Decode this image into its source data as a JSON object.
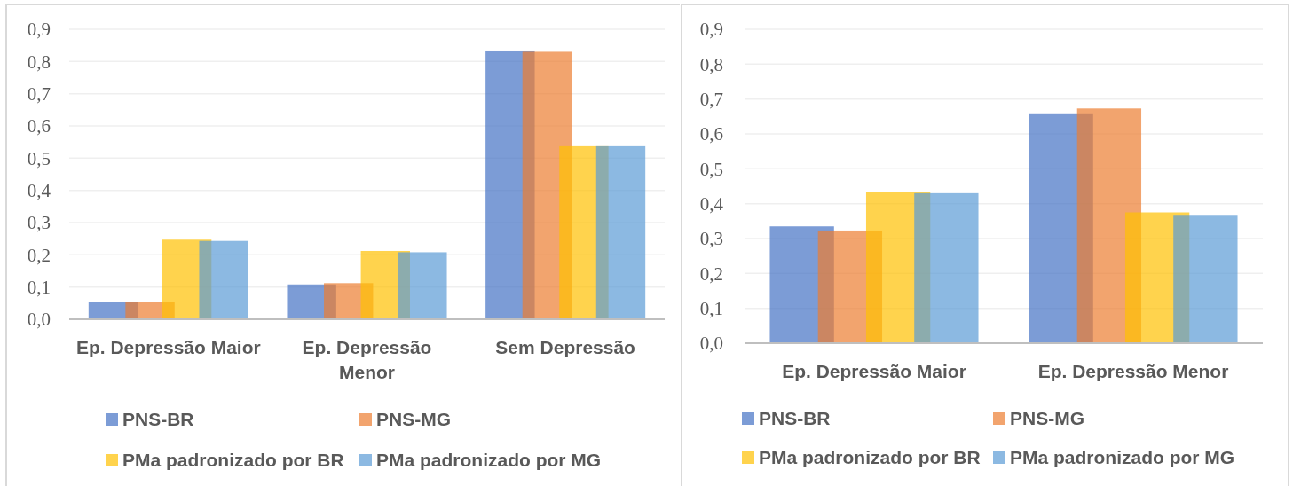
{
  "chart_data": [
    {
      "type": "bar",
      "categories": [
        "Ep. Depressão Maior",
        "Ep. Depressão Menor",
        "Sem Depressão"
      ],
      "series": [
        {
          "name": "PNS-BR",
          "color": "#7c9cd6",
          "values": [
            0.054,
            0.108,
            0.834
          ]
        },
        {
          "name": "PNS-MG",
          "color": "#f2a46f",
          "values": [
            0.055,
            0.112,
            0.83
          ]
        },
        {
          "name": "PMa padronizado por BR",
          "color": "#ffd34d",
          "values": [
            0.247,
            0.212,
            0.537
          ]
        },
        {
          "name": "PMa padronizado por MG",
          "color": "#8cb9e2",
          "values": [
            0.243,
            0.208,
            0.537
          ]
        }
      ],
      "ylim": [
        0,
        0.9
      ],
      "yticks": [
        {
          "value": 0,
          "label": "0,0"
        },
        {
          "value": 0.1,
          "label": "0,1"
        },
        {
          "value": 0.2,
          "label": "0,2"
        },
        {
          "value": 0.3,
          "label": "0,3"
        },
        {
          "value": 0.4,
          "label": "0,4"
        },
        {
          "value": 0.5,
          "label": "0,5"
        },
        {
          "value": 0.6,
          "label": "0,6"
        },
        {
          "value": 0.7,
          "label": "0,7"
        },
        {
          "value": 0.8,
          "label": "0,8"
        },
        {
          "value": 0.9,
          "label": "0,9"
        }
      ],
      "grid": "y",
      "legend": "bottom"
    },
    {
      "type": "bar",
      "categories": [
        "Ep. Depressão Maior",
        "Ep. Depressão Menor"
      ],
      "series": [
        {
          "name": "PNS-BR",
          "color": "#7c9cd6",
          "values": [
            0.335,
            0.659
          ]
        },
        {
          "name": "PNS-MG",
          "color": "#f2a46f",
          "values": [
            0.323,
            0.673
          ]
        },
        {
          "name": "PMa padronizado por BR",
          "color": "#ffd34d",
          "values": [
            0.433,
            0.375
          ]
        },
        {
          "name": "PMa padronizado por MG",
          "color": "#8cb9e2",
          "values": [
            0.43,
            0.368
          ]
        }
      ],
      "ylim": [
        0,
        0.9
      ],
      "yticks": [
        {
          "value": 0,
          "label": "0,0"
        },
        {
          "value": 0.1,
          "label": "0,1"
        },
        {
          "value": 0.2,
          "label": "0,2"
        },
        {
          "value": 0.3,
          "label": "0,3"
        },
        {
          "value": 0.4,
          "label": "0,4"
        },
        {
          "value": 0.5,
          "label": "0,5"
        },
        {
          "value": 0.6,
          "label": "0,6"
        },
        {
          "value": 0.7,
          "label": "0,7"
        },
        {
          "value": 0.8,
          "label": "0,8"
        },
        {
          "value": 0.9,
          "label": "0,9"
        }
      ],
      "grid": "y",
      "legend": "bottom"
    }
  ]
}
